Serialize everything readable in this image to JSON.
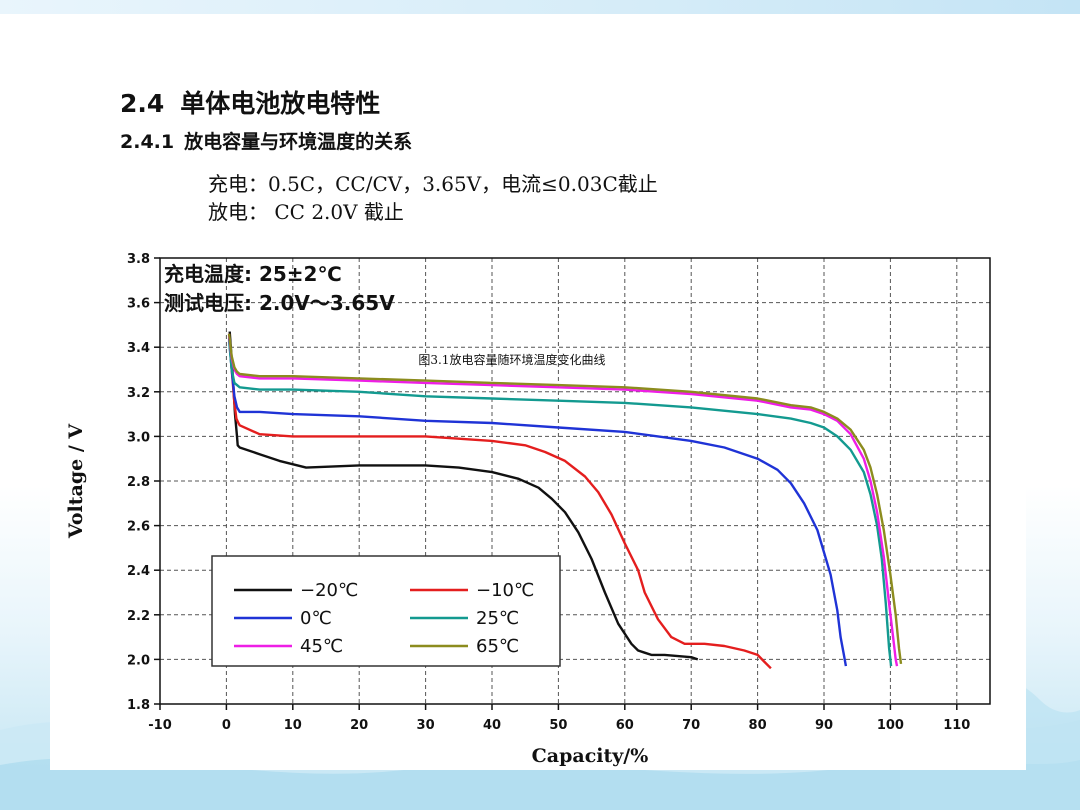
{
  "slide": {
    "heading_num": "2.4",
    "heading_text": "单体电池放电特性",
    "sub_num": "2.4.1",
    "sub_text": "放电容量与环境温度的关系",
    "note1": "充电：0.5C，CC/CV，3.65V，电流≤0.03C截止",
    "note2": "放电： CC 2.0V 截止"
  },
  "chart_data": {
    "type": "line",
    "title": "图3.1放电容量随环境温度变化曲线",
    "xlabel": "Capacity/%",
    "ylabel": "Voltage / V",
    "xlim": [
      -10,
      115
    ],
    "ylim": [
      1.8,
      3.8
    ],
    "xticks": [
      -10,
      0,
      10,
      20,
      30,
      40,
      50,
      60,
      70,
      80,
      90,
      100,
      110
    ],
    "yticks": [
      1.8,
      2.0,
      2.2,
      2.4,
      2.6,
      2.8,
      3.0,
      3.2,
      3.4,
      3.6,
      3.8
    ],
    "grid": true,
    "legend_position": "bottom-left",
    "annotations": [
      "充电温度: 25±2℃",
      "测试电压: 2.0V～3.65V"
    ],
    "series": [
      {
        "name": "−20℃",
        "color": "#111111",
        "x": [
          0.5,
          0.9,
          1.3,
          1.6,
          1.7,
          2,
          5,
          8,
          12,
          20,
          30,
          35,
          40,
          44,
          47,
          49,
          51,
          53,
          55,
          57,
          59,
          61,
          62,
          63,
          64,
          66,
          70,
          71
        ],
        "y": [
          3.47,
          3.3,
          3.1,
          3.0,
          2.96,
          2.95,
          2.92,
          2.89,
          2.86,
          2.87,
          2.87,
          2.86,
          2.84,
          2.81,
          2.77,
          2.72,
          2.66,
          2.57,
          2.45,
          2.3,
          2.16,
          2.07,
          2.04,
          2.03,
          2.02,
          2.02,
          2.01,
          2.0
        ]
      },
      {
        "name": "−10℃",
        "color": "#e41e1e",
        "x": [
          0.4,
          0.8,
          1.2,
          1.5,
          1.8,
          2,
          5,
          10,
          20,
          30,
          40,
          45,
          48,
          51,
          54,
          56,
          58,
          60,
          62,
          63,
          65,
          67,
          69,
          72,
          75,
          78,
          80,
          81,
          82
        ],
        "y": [
          3.46,
          3.3,
          3.15,
          3.08,
          3.06,
          3.05,
          3.01,
          3.0,
          3.0,
          3.0,
          2.98,
          2.96,
          2.93,
          2.89,
          2.82,
          2.75,
          2.65,
          2.52,
          2.4,
          2.3,
          2.18,
          2.1,
          2.07,
          2.07,
          2.06,
          2.04,
          2.02,
          1.99,
          1.96
        ]
      },
      {
        "name": "0℃",
        "color": "#1f33d6",
        "x": [
          0.4,
          0.8,
          1.2,
          1.6,
          2,
          5,
          10,
          20,
          30,
          40,
          50,
          60,
          70,
          75,
          80,
          83,
          85,
          87,
          89,
          90,
          91,
          92,
          92.5,
          93,
          93.3
        ],
        "y": [
          3.44,
          3.3,
          3.18,
          3.13,
          3.11,
          3.11,
          3.1,
          3.09,
          3.07,
          3.06,
          3.04,
          3.02,
          2.98,
          2.95,
          2.9,
          2.85,
          2.79,
          2.7,
          2.58,
          2.48,
          2.38,
          2.22,
          2.1,
          2.02,
          1.97
        ]
      },
      {
        "name": "25℃",
        "color": "#139a90",
        "x": [
          0.4,
          0.8,
          1.2,
          1.6,
          2,
          5,
          10,
          20,
          30,
          40,
          50,
          60,
          70,
          80,
          85,
          88,
          90,
          92,
          94,
          96,
          97,
          98,
          98.7,
          99.3,
          99.8,
          100.1
        ],
        "y": [
          3.43,
          3.3,
          3.24,
          3.23,
          3.22,
          3.21,
          3.21,
          3.2,
          3.18,
          3.17,
          3.16,
          3.15,
          3.13,
          3.1,
          3.08,
          3.06,
          3.04,
          3.0,
          2.94,
          2.84,
          2.74,
          2.6,
          2.45,
          2.25,
          2.05,
          1.97
        ]
      },
      {
        "name": "45℃",
        "color": "#ee1ee6",
        "x": [
          0.4,
          0.8,
          1.2,
          1.6,
          2,
          5,
          10,
          20,
          30,
          40,
          50,
          60,
          70,
          80,
          85,
          88,
          90,
          92,
          94,
          96,
          97,
          98,
          99,
          99.8,
          100.4,
          100.8,
          101
        ],
        "y": [
          3.45,
          3.35,
          3.3,
          3.28,
          3.27,
          3.26,
          3.26,
          3.25,
          3.24,
          3.23,
          3.22,
          3.21,
          3.19,
          3.16,
          3.13,
          3.12,
          3.1,
          3.07,
          3.01,
          2.9,
          2.8,
          2.66,
          2.46,
          2.25,
          2.1,
          2.0,
          1.97
        ]
      },
      {
        "name": "65℃",
        "color": "#8c8c1e",
        "x": [
          0.4,
          0.8,
          1.2,
          1.6,
          2,
          5,
          10,
          20,
          30,
          40,
          50,
          60,
          70,
          80,
          85,
          88,
          90,
          92,
          94,
          96,
          97,
          98,
          99,
          100,
          100.8,
          101.3,
          101.6
        ],
        "y": [
          3.46,
          3.36,
          3.31,
          3.29,
          3.28,
          3.27,
          3.27,
          3.26,
          3.25,
          3.24,
          3.23,
          3.22,
          3.2,
          3.17,
          3.14,
          3.13,
          3.11,
          3.08,
          3.03,
          2.94,
          2.86,
          2.74,
          2.58,
          2.38,
          2.2,
          2.05,
          1.98
        ]
      }
    ]
  }
}
